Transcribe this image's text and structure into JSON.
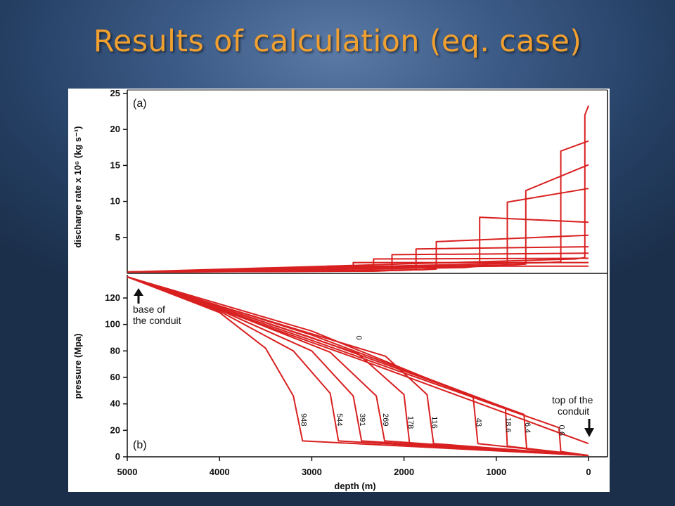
{
  "slide": {
    "title": "Results of calculation (eq. case)",
    "accent_color": "#f0a030",
    "background_color": "#2e4b74"
  },
  "chart_data": [
    {
      "type": "line",
      "panel_label": "(a)",
      "xlabel": "",
      "ylabel": "discharge rate x 10⁶ (kg s⁻¹)",
      "xlim": [
        5000,
        0
      ],
      "ylim": [
        0,
        25
      ],
      "yticks": [
        5,
        10,
        15,
        20,
        25
      ],
      "line_color": "#d92020",
      "series": [
        {
          "values": [
            [
              5000,
              0.2
            ],
            [
              3000,
              0.3
            ],
            [
              2830,
              0.3
            ],
            [
              2830,
              1.0
            ],
            [
              0,
              1.0
            ]
          ]
        },
        {
          "values": [
            [
              5000,
              0.2
            ],
            [
              2700,
              0.3
            ],
            [
              2550,
              0.3
            ],
            [
              2550,
              1.5
            ],
            [
              0,
              1.5
            ]
          ]
        },
        {
          "values": [
            [
              5000,
              0.2
            ],
            [
              2500,
              0.3
            ],
            [
              2330,
              0.3
            ],
            [
              2330,
              2.0
            ],
            [
              0,
              2.1
            ]
          ]
        },
        {
          "values": [
            [
              5000,
              0.2
            ],
            [
              2300,
              0.3
            ],
            [
              2130,
              0.4
            ],
            [
              2130,
              2.6
            ],
            [
              0,
              2.8
            ]
          ]
        },
        {
          "values": [
            [
              5000,
              0.2
            ],
            [
              2050,
              0.4
            ],
            [
              1870,
              0.5
            ],
            [
              1870,
              3.4
            ],
            [
              0,
              3.7
            ]
          ]
        },
        {
          "values": [
            [
              5000,
              0.2
            ],
            [
              1800,
              0.5
            ],
            [
              1650,
              0.6
            ],
            [
              1650,
              4.4
            ],
            [
              0,
              5.3
            ]
          ]
        },
        {
          "values": [
            [
              5000,
              0.2
            ],
            [
              1350,
              0.8
            ],
            [
              1180,
              1.0
            ],
            [
              1180,
              7.8
            ],
            [
              0,
              7.1
            ]
          ]
        },
        {
          "values": [
            [
              5000,
              0.2
            ],
            [
              1000,
              1.0
            ],
            [
              880,
              1.1
            ],
            [
              880,
              9.9
            ],
            [
              0,
              11.8
            ]
          ]
        },
        {
          "values": [
            [
              5000,
              0.2
            ],
            [
              800,
              1.2
            ],
            [
              680,
              1.3
            ],
            [
              680,
              11.5
            ],
            [
              0,
              15.1
            ]
          ]
        },
        {
          "values": [
            [
              5000,
              0.2
            ],
            [
              450,
              1.5
            ],
            [
              300,
              1.6
            ],
            [
              300,
              17.0
            ],
            [
              0,
              18.4
            ]
          ]
        },
        {
          "values": [
            [
              5000,
              0.2
            ],
            [
              140,
              2.0
            ],
            [
              40,
              2.2
            ],
            [
              40,
              22.0
            ],
            [
              0,
              23.3
            ]
          ]
        }
      ]
    },
    {
      "type": "line",
      "panel_label": "(b)",
      "xlabel": "depth (m)",
      "ylabel": "pressure (Mpa)",
      "xlim": [
        5000,
        0
      ],
      "ylim": [
        0,
        135
      ],
      "xticks": [
        5000,
        4000,
        3000,
        2000,
        1000,
        0
      ],
      "yticks": [
        0,
        20,
        40,
        60,
        80,
        100,
        120
      ],
      "line_color": "#d92020",
      "series": [
        {
          "name": "948",
          "values": [
            [
              5000,
              136
            ],
            [
              4000,
              109
            ],
            [
              3500,
              82
            ],
            [
              3200,
              46
            ],
            [
              3100,
              12
            ],
            [
              0,
              1
            ]
          ]
        },
        {
          "name": "544",
          "values": [
            [
              5000,
              136
            ],
            [
              4000,
              110
            ],
            [
              3200,
              80
            ],
            [
              2800,
              48
            ],
            [
              2710,
              12
            ],
            [
              0,
              1
            ]
          ]
        },
        {
          "name": "391",
          "values": [
            [
              5000,
              136
            ],
            [
              4000,
              111
            ],
            [
              3000,
              80
            ],
            [
              2550,
              46
            ],
            [
              2460,
              12
            ],
            [
              0,
              1
            ]
          ]
        },
        {
          "name": "269",
          "values": [
            [
              5000,
              136
            ],
            [
              4000,
              112
            ],
            [
              2800,
              79
            ],
            [
              2300,
              46
            ],
            [
              2210,
              12
            ],
            [
              0,
              1
            ]
          ]
        },
        {
          "name": "178",
          "values": [
            [
              5000,
              136
            ],
            [
              4000,
              113
            ],
            [
              2500,
              78
            ],
            [
              2000,
              47
            ],
            [
              1940,
              10
            ],
            [
              0,
              1
            ]
          ]
        },
        {
          "name": "116",
          "values": [
            [
              5000,
              136
            ],
            [
              4000,
              114
            ],
            [
              2200,
              76
            ],
            [
              1750,
              47
            ],
            [
              1680,
              10
            ],
            [
              0,
              1
            ]
          ]
        },
        {
          "name": "43",
          "values": [
            [
              5000,
              136
            ],
            [
              3000,
              95
            ],
            [
              1250,
              45
            ],
            [
              1200,
              10
            ],
            [
              0,
              1
            ]
          ]
        },
        {
          "name": "18.6",
          "values": [
            [
              5000,
              136
            ],
            [
              3000,
              92
            ],
            [
              900,
              37
            ],
            [
              880,
              8
            ],
            [
              0,
              1
            ]
          ]
        },
        {
          "name": "6.4",
          "values": [
            [
              5000,
              136
            ],
            [
              3000,
              90
            ],
            [
              700,
              32
            ],
            [
              670,
              6
            ],
            [
              0,
              1
            ]
          ]
        },
        {
          "name": "0.6",
          "values": [
            [
              5000,
              136
            ],
            [
              3000,
              88
            ],
            [
              320,
              22
            ],
            [
              300,
              4
            ],
            [
              0,
              1
            ]
          ]
        },
        {
          "name": "0",
          "values": [
            [
              5000,
              136
            ],
            [
              2500,
              74
            ],
            [
              0,
              10
            ]
          ]
        }
      ],
      "annotations": {
        "base": [
          "base of",
          "the conduit"
        ],
        "top": [
          "top of the",
          "conduit"
        ]
      }
    }
  ]
}
